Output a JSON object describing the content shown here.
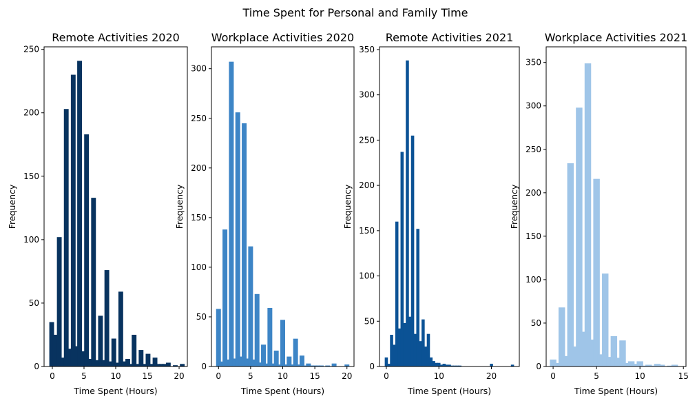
{
  "figure": {
    "suptitle": "Time Spent for Personal and Family Time"
  },
  "chart_data": [
    {
      "type": "bar",
      "title": "Remote Activities 2020",
      "xlabel": "Time Spent (Hours)",
      "ylabel": "Frequency",
      "color": "#08335f",
      "xlim": [
        -1.3,
        21.3
      ],
      "ylim": [
        0,
        252
      ],
      "xticks": [
        0,
        5,
        10,
        15,
        20
      ],
      "yticks": [
        0,
        50,
        100,
        150,
        200,
        250
      ],
      "bar_width": 0.75,
      "x": [
        -0.1,
        0.4,
        1.1,
        1.6,
        2.2,
        2.7,
        3.3,
        3.8,
        4.3,
        4.8,
        5.4,
        5.9,
        6.5,
        7.0,
        7.6,
        8.1,
        8.6,
        9.1,
        9.7,
        10.2,
        10.8,
        11.3,
        11.9,
        12.4,
        12.9,
        13.4,
        14.0,
        14.5,
        15.1,
        15.6,
        16.2,
        16.7,
        17.2,
        17.7,
        18.3,
        19.4,
        20.5
      ],
      "values": [
        35,
        25,
        102,
        7,
        203,
        14,
        230,
        16,
        241,
        12,
        183,
        6,
        133,
        5,
        40,
        5,
        76,
        4,
        22,
        3,
        59,
        4,
        6,
        2,
        25,
        2,
        13,
        2,
        10,
        2,
        7,
        2,
        2,
        2,
        3,
        1,
        2
      ]
    },
    {
      "type": "bar",
      "title": "Workplace Activities 2020",
      "xlabel": "Time Spent (Hours)",
      "ylabel": "Frequency",
      "color": "#3d85c6",
      "xlim": [
        -1.1,
        21.1
      ],
      "ylim": [
        0,
        322
      ],
      "xticks": [
        0,
        5,
        10,
        15,
        20
      ],
      "yticks": [
        0,
        50,
        100,
        150,
        200,
        250,
        300
      ],
      "bar_width": 0.75,
      "x": [
        0,
        0.5,
        1.0,
        1.5,
        2.0,
        2.5,
        3.0,
        3.5,
        4.0,
        4.5,
        5.0,
        5.5,
        6.0,
        6.5,
        7.0,
        7.5,
        8.0,
        8.5,
        9.0,
        9.5,
        10.0,
        10.5,
        11.0,
        11.5,
        12.0,
        12.5,
        13.0,
        13.5,
        14.0,
        14.5,
        15.0,
        15.5,
        16.0,
        16.5,
        17.0,
        17.5,
        18.0,
        18.5,
        19.0,
        19.5,
        20.0
      ],
      "values": [
        58,
        5,
        138,
        7,
        307,
        8,
        256,
        10,
        245,
        8,
        121,
        7,
        73,
        4,
        22,
        3,
        59,
        3,
        16,
        2,
        47,
        2,
        10,
        2,
        28,
        2,
        11,
        1,
        3,
        1,
        1,
        1,
        1,
        0,
        1,
        0,
        3,
        0,
        0,
        0,
        2
      ]
    },
    {
      "type": "bar",
      "title": "Remote Activities 2021",
      "xlabel": "Time Spent (Hours)",
      "ylabel": "Frequency",
      "color": "#0b5295",
      "xlim": [
        -1.3,
        25.3
      ],
      "ylim": [
        0,
        353
      ],
      "xticks": [
        0,
        10,
        20
      ],
      "yticks": [
        0,
        50,
        100,
        150,
        200,
        250,
        300,
        350
      ],
      "bar_width": 0.6,
      "x": [
        0,
        0.5,
        1.0,
        1.5,
        2.0,
        2.5,
        3.0,
        3.5,
        4.0,
        4.5,
        5.0,
        5.5,
        6.0,
        6.5,
        7.0,
        7.5,
        8.0,
        8.5,
        9.0,
        9.5,
        10.0,
        10.5,
        11.0,
        11.5,
        12.0,
        12.5,
        13.0,
        13.5,
        14.0,
        20.0,
        24.0
      ],
      "values": [
        10,
        3,
        35,
        24,
        160,
        42,
        237,
        48,
        338,
        55,
        255,
        36,
        152,
        28,
        52,
        22,
        36,
        10,
        6,
        4,
        4,
        2,
        3,
        2,
        2,
        1,
        1,
        1,
        1,
        3,
        2
      ]
    },
    {
      "type": "bar",
      "title": "Workplace Activities 2021",
      "xlabel": "Time Spent (Hours)",
      "ylabel": "Frequency",
      "color": "#9fc5e8",
      "xlim": [
        -0.8,
        15.3
      ],
      "ylim": [
        0,
        368
      ],
      "xticks": [
        0,
        5,
        10,
        15
      ],
      "yticks": [
        0,
        50,
        100,
        150,
        200,
        250,
        300,
        350
      ],
      "bar_width": 0.75,
      "x": [
        0,
        0.5,
        1.0,
        1.5,
        2.0,
        2.5,
        3.0,
        3.5,
        4.0,
        4.5,
        5.0,
        5.5,
        6.0,
        6.5,
        7.0,
        7.5,
        8.0,
        8.5,
        9.0,
        9.5,
        10.0,
        10.5,
        11.0,
        11.5,
        12.0,
        12.5,
        13.0,
        13.5,
        14.0,
        14.5
      ],
      "values": [
        8,
        4,
        68,
        12,
        234,
        23,
        298,
        40,
        349,
        31,
        216,
        14,
        107,
        11,
        35,
        10,
        30,
        4,
        6,
        3,
        6,
        1,
        2,
        1,
        3,
        2,
        0,
        1,
        2,
        0
      ]
    }
  ]
}
